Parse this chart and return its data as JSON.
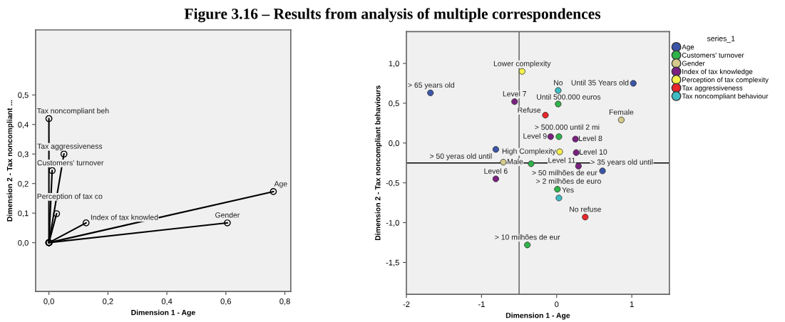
{
  "chart_data": [
    {
      "type": "line",
      "title": "Figure 3.16 – Results from analysis of multiple correspondences",
      "xlabel": "Dimension 1 - Age",
      "ylabel": "Dimension 2 - Tax noncompliant ...",
      "marker": "circle",
      "grid": false,
      "legend": false,
      "xlim": [
        -0.045,
        0.82
      ],
      "ylim": [
        -0.165,
        0.72
      ],
      "xticks": [
        {
          "value": 0,
          "label": "0,0"
        },
        {
          "value": 0.2,
          "label": "0,2"
        },
        {
          "value": 0.4,
          "label": "0,4"
        },
        {
          "value": 0.6,
          "label": "0,6"
        },
        {
          "value": 0.8,
          "label": "0,8"
        }
      ],
      "yticks": [
        {
          "value": 0,
          "label": "0,0"
        },
        {
          "value": 0.1,
          "label": "0,1"
        },
        {
          "value": 0.2,
          "label": "0,2"
        },
        {
          "value": 0.3,
          "label": "0,3"
        },
        {
          "value": 0.4,
          "label": "0,4"
        },
        {
          "value": 0.5,
          "label": "0,5"
        }
      ],
      "series": [
        {
          "color": "#000000",
          "x": [
            0,
            0.0
          ],
          "values": [
            0,
            0.42
          ]
        },
        {
          "color": "#000000",
          "x": [
            0,
            0.051
          ],
          "values": [
            0,
            0.3
          ]
        },
        {
          "color": "#000000",
          "x": [
            0,
            0.011
          ],
          "values": [
            0,
            0.244
          ]
        },
        {
          "color": "#000000",
          "x": [
            0,
            0.026
          ],
          "values": [
            0,
            0.098
          ]
        },
        {
          "color": "#000000",
          "x": [
            0,
            0.126
          ],
          "values": [
            0,
            0.067
          ]
        },
        {
          "color": "#000000",
          "x": [
            0,
            0.605
          ],
          "values": [
            0,
            0.067
          ]
        },
        {
          "color": "#000000",
          "x": [
            0,
            0.761
          ],
          "values": [
            0,
            0.173
          ]
        }
      ],
      "annotations": [
        {
          "text": "Tax noncompliant beh",
          "x": 0.0,
          "y": 0.42
        },
        {
          "text": "Tax aggressiveness",
          "x": 0.051,
          "y": 0.3
        },
        {
          "text": "Customers' turnover",
          "x": 0.011,
          "y": 0.244
        },
        {
          "text": "Perception of tax co",
          "x": 0.026,
          "y": 0.098
        },
        {
          "text": "Index of tax knowled",
          "x": 0.126,
          "y": 0.067
        },
        {
          "text": "Gender",
          "x": 0.605,
          "y": 0.067
        },
        {
          "text": "Age",
          "x": 0.761,
          "y": 0.173
        }
      ]
    },
    {
      "type": "scatter",
      "xlabel": "Dimension 1 - Age",
      "ylabel": "Dimension 2 - Tax noncompliant behaviours",
      "legend_title": "series_1",
      "legend": "right",
      "marker": "circle",
      "grid": false,
      "xlim": [
        -2,
        1.5
      ],
      "ylim": [
        -1.9,
        1.4
      ],
      "xticks": [
        -2,
        -1,
        0,
        1
      ],
      "yticks": [
        {
          "value": 1,
          "label": "1,0"
        },
        {
          "value": 0.5,
          "label": "0,5"
        },
        {
          "value": 0,
          "label": "0,0"
        },
        {
          "value": -0.5,
          "label": "-0,5"
        },
        {
          "value": -1,
          "label": "-1,0"
        },
        {
          "value": -1.5,
          "label": "-1,5"
        }
      ],
      "ref_lines": [
        {
          "axis": "y",
          "value": -0.25,
          "color": "#000000"
        },
        {
          "axis": "x",
          "value": -0.5,
          "color": "#555555"
        }
      ],
      "series": [
        {
          "name": "Age",
          "color": "#3b55a8",
          "x": [
            -1.68,
            1.02,
            -0.81,
            0.61
          ],
          "values": [
            0.63,
            0.75,
            -0.08,
            -0.35
          ]
        },
        {
          "name": "Customers' turnover",
          "color": "#2fb34a",
          "x": [
            0.02,
            0.03,
            -0.34,
            0.01,
            -0.39
          ],
          "values": [
            0.49,
            0.08,
            -0.26,
            -0.58,
            -1.28
          ]
        },
        {
          "name": "Gender",
          "color": "#d4cb8c",
          "x": [
            -0.71,
            0.86
          ],
          "values": [
            -0.24,
            0.29
          ]
        },
        {
          "name": "Index of tax knowledge",
          "color": "#7a2080",
          "x": [
            -0.56,
            -0.08,
            0.25,
            0.26,
            0.29,
            -0.81
          ],
          "values": [
            0.52,
            0.08,
            0.05,
            -0.12,
            -0.29,
            -0.45
          ]
        },
        {
          "name": "Perception of tax complexity",
          "color": "#f6f14c",
          "x": [
            -0.46,
            0.04
          ],
          "values": [
            0.9,
            -0.11
          ]
        },
        {
          "name": "Tax aggressiveness",
          "color": "#e8262b",
          "x": [
            -0.15,
            0.38
          ],
          "values": [
            0.35,
            -0.93
          ]
        },
        {
          "name": "Tax noncompliant behaviour",
          "color": "#40bcc4",
          "x": [
            0.02,
            0.03
          ],
          "values": [
            0.66,
            -0.69
          ]
        }
      ],
      "annotations": [
        {
          "text": "> 65 years old",
          "x": -1.68,
          "y": 0.63
        },
        {
          "text": "Until 35 Years old",
          "x": 1.02,
          "y": 0.75
        },
        {
          "text": "> 50 yeras old until",
          "x": -0.81,
          "y": -0.08
        },
        {
          "text": "> 35 years old until",
          "x": 0.61,
          "y": -0.35
        },
        {
          "text": "Until 500.000 euros",
          "x": 0.02,
          "y": 0.49
        },
        {
          "text": "> 500.000 until 2 mi",
          "x": 0.03,
          "y": 0.08
        },
        {
          "text": "> 50 milhões de eur",
          "x": -0.34,
          "y": -0.26
        },
        {
          "text": "> 2 milhões de euro",
          "x": 0.01,
          "y": -0.58
        },
        {
          "text": "> 10 milhões de eur",
          "x": -0.39,
          "y": -1.28
        },
        {
          "text": "Male",
          "x": -0.71,
          "y": -0.24
        },
        {
          "text": "Female",
          "x": 0.86,
          "y": 0.29
        },
        {
          "text": "Level 7",
          "x": -0.56,
          "y": 0.52
        },
        {
          "text": "Level 9",
          "x": -0.08,
          "y": 0.08
        },
        {
          "text": "Level 8",
          "x": 0.25,
          "y": 0.05
        },
        {
          "text": "Level 10",
          "x": 0.26,
          "y": -0.12
        },
        {
          "text": "Level 11",
          "x": 0.29,
          "y": -0.29
        },
        {
          "text": "Level 6",
          "x": -0.81,
          "y": -0.45
        },
        {
          "text": "Lower complexity",
          "x": -0.46,
          "y": 0.9
        },
        {
          "text": "High Complexity",
          "x": 0.04,
          "y": -0.11
        },
        {
          "text": "Refuse",
          "x": -0.15,
          "y": 0.35
        },
        {
          "text": "No refuse",
          "x": 0.38,
          "y": -0.93
        },
        {
          "text": "No",
          "x": 0.02,
          "y": 0.66
        },
        {
          "text": "Yes",
          "x": 0.03,
          "y": -0.69
        }
      ]
    }
  ]
}
